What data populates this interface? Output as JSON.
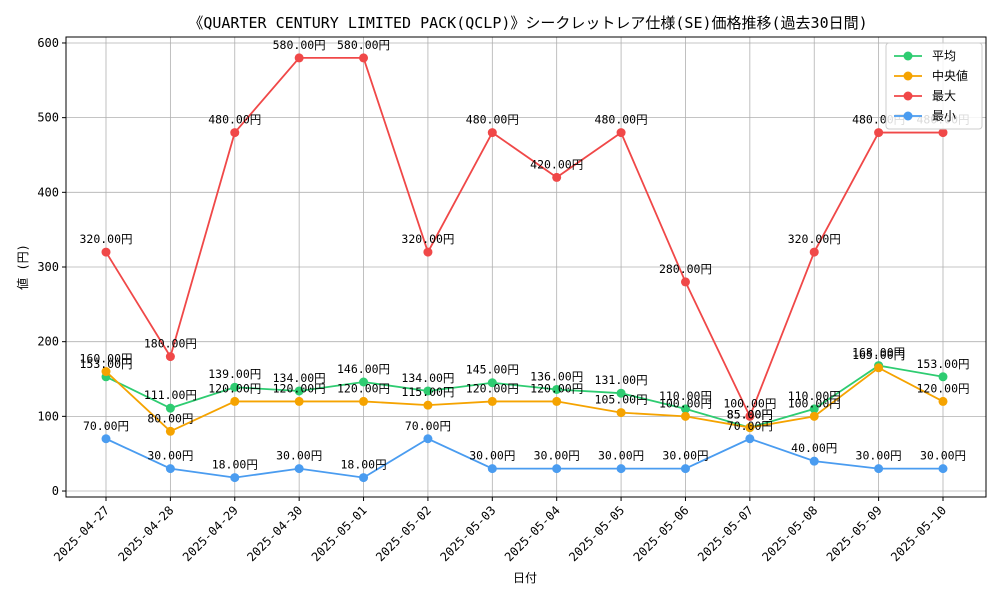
{
  "chart_data": {
    "type": "line",
    "title": "《QUARTER CENTURY LIMITED PACK(QCLP)》シークレットレア仕様(SE)価格推移(過去30日間)",
    "xlabel": "日付",
    "ylabel": "値 (円)",
    "categories": [
      "2025-04-27",
      "2025-04-28",
      "2025-04-29",
      "2025-04-30",
      "2025-05-01",
      "2025-05-02",
      "2025-05-03",
      "2025-05-04",
      "2025-05-05",
      "2025-05-06",
      "2025-05-07",
      "2025-05-08",
      "2025-05-09",
      "2025-05-10"
    ],
    "ylim": [
      -8,
      608
    ],
    "yticks": [
      0,
      100,
      200,
      300,
      400,
      500,
      600
    ],
    "grid": true,
    "legend_position": "top-right",
    "value_suffix": "円",
    "series": [
      {
        "name": "平均",
        "color": "#2ecc71",
        "values": [
          153,
          111,
          139,
          134,
          146,
          134,
          145,
          136,
          131,
          110,
          85,
          110,
          168,
          153
        ]
      },
      {
        "name": "中央値",
        "color": "#f5a300",
        "values": [
          160,
          80,
          120,
          120,
          120,
          115,
          120,
          120,
          105,
          100,
          85,
          100,
          165,
          120
        ]
      },
      {
        "name": "最大",
        "color": "#f04848",
        "values": [
          320,
          180,
          480,
          580,
          580,
          320,
          480,
          420,
          480,
          280,
          100,
          320,
          480,
          480
        ]
      },
      {
        "name": "最小",
        "color": "#4a9cf0",
        "values": [
          70,
          30,
          18,
          30,
          18,
          70,
          30,
          30,
          30,
          30,
          70,
          40,
          30,
          30
        ]
      }
    ]
  }
}
